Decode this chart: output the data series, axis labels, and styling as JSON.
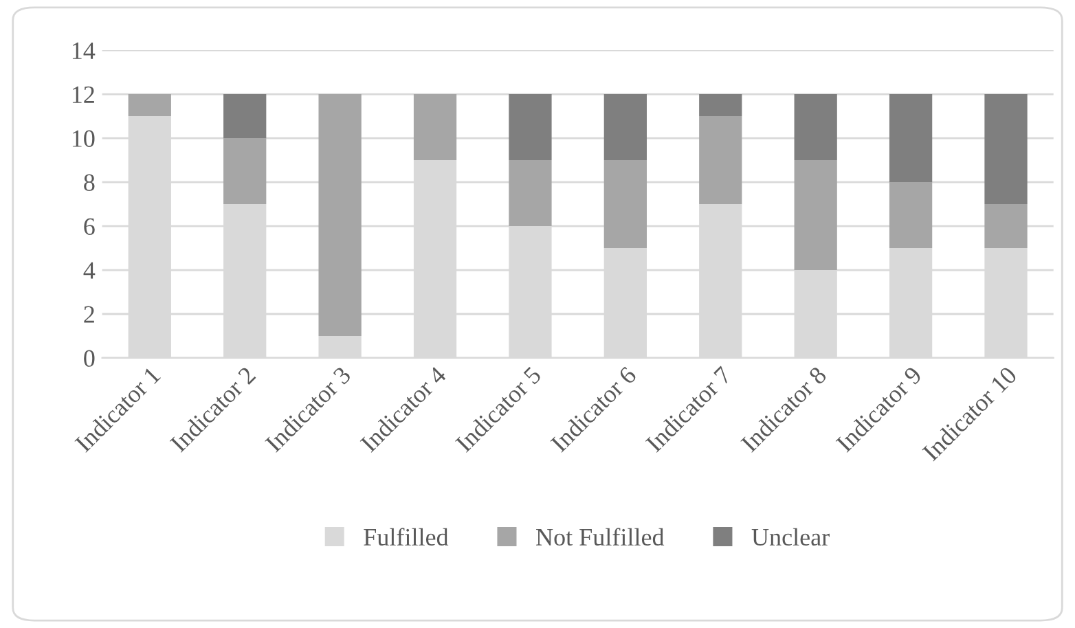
{
  "chart_data": {
    "type": "bar",
    "stacked": true,
    "categories": [
      "Indicator 1",
      "Indicator 2",
      "Indicator 3",
      "Indicator 4",
      "Indicator 5",
      "Indicator 6",
      "Indicator 7",
      "Indicator 8",
      "Indicator 9",
      "Indicator 10"
    ],
    "series": [
      {
        "name": "Fulfilled",
        "color": "#d9d9d9",
        "values": [
          11,
          7,
          1,
          9,
          6,
          5,
          7,
          4,
          5,
          5
        ]
      },
      {
        "name": "Not Fulfilled",
        "color": "#a6a6a6",
        "values": [
          1,
          3,
          11,
          3,
          3,
          4,
          4,
          5,
          3,
          2
        ]
      },
      {
        "name": "Unclear",
        "color": "#7f7f7f",
        "values": [
          0,
          2,
          0,
          0,
          3,
          3,
          1,
          3,
          4,
          5
        ]
      }
    ],
    "ylim": [
      0,
      14
    ],
    "yticks": [
      0,
      2,
      4,
      6,
      8,
      10,
      12,
      14
    ],
    "grid": "y",
    "legend": "bottom"
  }
}
